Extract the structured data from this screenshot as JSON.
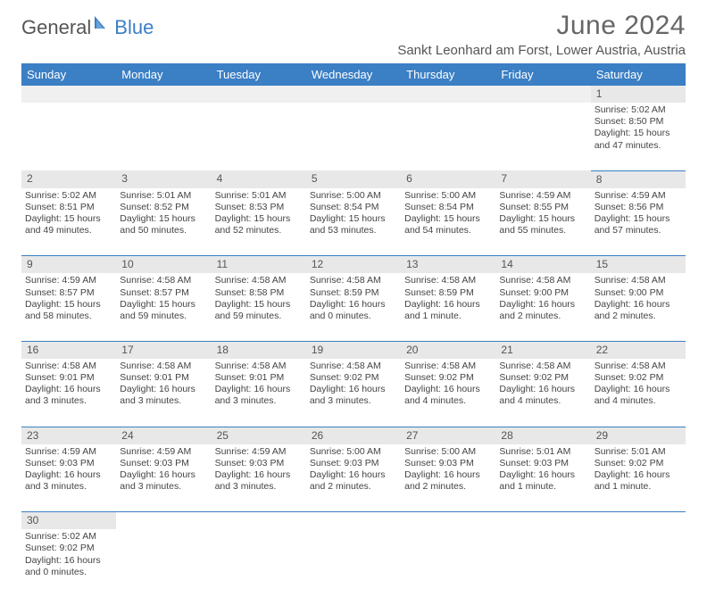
{
  "logo": {
    "general": "General",
    "blue": "Blue"
  },
  "title": "June 2024",
  "location": "Sankt Leonhard am Forst, Lower Austria, Austria",
  "headers": [
    "Sunday",
    "Monday",
    "Tuesday",
    "Wednesday",
    "Thursday",
    "Friday",
    "Saturday"
  ],
  "colors": {
    "header_bg": "#3b7fc4",
    "header_text": "#ffffff",
    "daynum_bg": "#e8e8e8",
    "cell_border": "#3b7fc4",
    "text": "#444444",
    "logo_gray": "#555555",
    "logo_blue": "#3b7fc4"
  },
  "weeks": [
    [
      null,
      null,
      null,
      null,
      null,
      null,
      {
        "n": "1",
        "rise": "5:02 AM",
        "set": "8:50 PM",
        "dl": "15 hours and 47 minutes."
      }
    ],
    [
      {
        "n": "2",
        "rise": "5:02 AM",
        "set": "8:51 PM",
        "dl": "15 hours and 49 minutes."
      },
      {
        "n": "3",
        "rise": "5:01 AM",
        "set": "8:52 PM",
        "dl": "15 hours and 50 minutes."
      },
      {
        "n": "4",
        "rise": "5:01 AM",
        "set": "8:53 PM",
        "dl": "15 hours and 52 minutes."
      },
      {
        "n": "5",
        "rise": "5:00 AM",
        "set": "8:54 PM",
        "dl": "15 hours and 53 minutes."
      },
      {
        "n": "6",
        "rise": "5:00 AM",
        "set": "8:54 PM",
        "dl": "15 hours and 54 minutes."
      },
      {
        "n": "7",
        "rise": "4:59 AM",
        "set": "8:55 PM",
        "dl": "15 hours and 55 minutes."
      },
      {
        "n": "8",
        "rise": "4:59 AM",
        "set": "8:56 PM",
        "dl": "15 hours and 57 minutes."
      }
    ],
    [
      {
        "n": "9",
        "rise": "4:59 AM",
        "set": "8:57 PM",
        "dl": "15 hours and 58 minutes."
      },
      {
        "n": "10",
        "rise": "4:58 AM",
        "set": "8:57 PM",
        "dl": "15 hours and 59 minutes."
      },
      {
        "n": "11",
        "rise": "4:58 AM",
        "set": "8:58 PM",
        "dl": "15 hours and 59 minutes."
      },
      {
        "n": "12",
        "rise": "4:58 AM",
        "set": "8:59 PM",
        "dl": "16 hours and 0 minutes."
      },
      {
        "n": "13",
        "rise": "4:58 AM",
        "set": "8:59 PM",
        "dl": "16 hours and 1 minute."
      },
      {
        "n": "14",
        "rise": "4:58 AM",
        "set": "9:00 PM",
        "dl": "16 hours and 2 minutes."
      },
      {
        "n": "15",
        "rise": "4:58 AM",
        "set": "9:00 PM",
        "dl": "16 hours and 2 minutes."
      }
    ],
    [
      {
        "n": "16",
        "rise": "4:58 AM",
        "set": "9:01 PM",
        "dl": "16 hours and 3 minutes."
      },
      {
        "n": "17",
        "rise": "4:58 AM",
        "set": "9:01 PM",
        "dl": "16 hours and 3 minutes."
      },
      {
        "n": "18",
        "rise": "4:58 AM",
        "set": "9:01 PM",
        "dl": "16 hours and 3 minutes."
      },
      {
        "n": "19",
        "rise": "4:58 AM",
        "set": "9:02 PM",
        "dl": "16 hours and 3 minutes."
      },
      {
        "n": "20",
        "rise": "4:58 AM",
        "set": "9:02 PM",
        "dl": "16 hours and 4 minutes."
      },
      {
        "n": "21",
        "rise": "4:58 AM",
        "set": "9:02 PM",
        "dl": "16 hours and 4 minutes."
      },
      {
        "n": "22",
        "rise": "4:58 AM",
        "set": "9:02 PM",
        "dl": "16 hours and 4 minutes."
      }
    ],
    [
      {
        "n": "23",
        "rise": "4:59 AM",
        "set": "9:03 PM",
        "dl": "16 hours and 3 minutes."
      },
      {
        "n": "24",
        "rise": "4:59 AM",
        "set": "9:03 PM",
        "dl": "16 hours and 3 minutes."
      },
      {
        "n": "25",
        "rise": "4:59 AM",
        "set": "9:03 PM",
        "dl": "16 hours and 3 minutes."
      },
      {
        "n": "26",
        "rise": "5:00 AM",
        "set": "9:03 PM",
        "dl": "16 hours and 2 minutes."
      },
      {
        "n": "27",
        "rise": "5:00 AM",
        "set": "9:03 PM",
        "dl": "16 hours and 2 minutes."
      },
      {
        "n": "28",
        "rise": "5:01 AM",
        "set": "9:03 PM",
        "dl": "16 hours and 1 minute."
      },
      {
        "n": "29",
        "rise": "5:01 AM",
        "set": "9:02 PM",
        "dl": "16 hours and 1 minute."
      }
    ],
    [
      {
        "n": "30",
        "rise": "5:02 AM",
        "set": "9:02 PM",
        "dl": "16 hours and 0 minutes."
      },
      null,
      null,
      null,
      null,
      null,
      null
    ]
  ],
  "labels": {
    "sunrise": "Sunrise: ",
    "sunset": "Sunset: ",
    "daylight": "Daylight: "
  }
}
